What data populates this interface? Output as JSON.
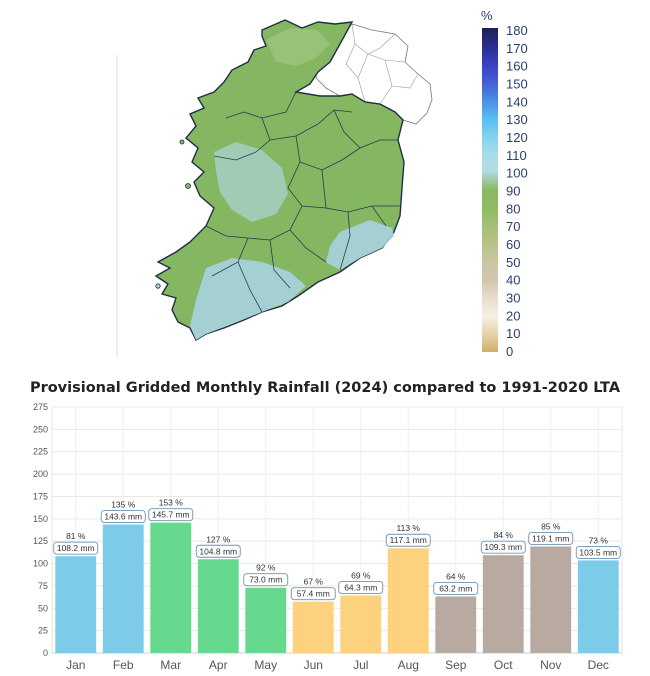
{
  "legend": {
    "unit": "%",
    "ticks": [
      "180",
      "170",
      "160",
      "150",
      "140",
      "130",
      "120",
      "110",
      "100",
      "90",
      "80",
      "70",
      "60",
      "50",
      "40",
      "30",
      "20",
      "10",
      "0"
    ]
  },
  "chart_data": {
    "type": "bar",
    "title": "Provisional Gridded Monthly Rainfall (2024) compared to 1991-2020 LTA",
    "categories": [
      "Jan",
      "Feb",
      "Mar",
      "Apr",
      "May",
      "Jun",
      "Jul",
      "Aug",
      "Sep",
      "Oct",
      "Nov",
      "Dec"
    ],
    "values": [
      108.2,
      143.6,
      145.7,
      104.8,
      73.0,
      57.4,
      64.3,
      117.1,
      63.2,
      109.3,
      119.1,
      103.5
    ],
    "percent_labels": [
      "81 %",
      "135 %",
      "153 %",
      "127 %",
      "92 %",
      "67 %",
      "69 %",
      "113 %",
      "64 %",
      "84 %",
      "85 %",
      "73 %"
    ],
    "mm_labels": [
      "108.2 mm",
      "143.6 mm",
      "145.7 mm",
      "104.8 mm",
      "73.0 mm",
      "57.4 mm",
      "64.3 mm",
      "117.1 mm",
      "63.2 mm",
      "109.3 mm",
      "119.1 mm",
      "103.5 mm"
    ],
    "colors": [
      "#7ccbe8",
      "#7ccbe8",
      "#66d98e",
      "#66d98e",
      "#66d98e",
      "#fcd27e",
      "#fcd27e",
      "#fcd27e",
      "#b9aaa1",
      "#b9aaa1",
      "#b9aaa1",
      "#7ccbe8"
    ],
    "ylim": [
      0,
      275
    ],
    "yticks": [
      "0",
      "25",
      "50",
      "75",
      "100",
      "125",
      "150",
      "175",
      "200",
      "225",
      "250",
      "275"
    ],
    "grid": true
  }
}
